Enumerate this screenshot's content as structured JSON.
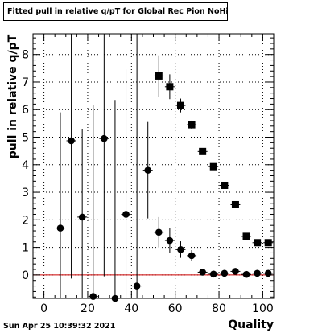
{
  "title": "Fitted pull in relative q/pT  for Global Rec Pion NoHits",
  "timestamp": "Sun Apr 25 10:39:32 2021",
  "chart_data": {
    "type": "scatter",
    "title": "Fitted pull in relative q/pT  for Global Rec Pion NoHits",
    "xlabel": "Quality",
    "ylabel": "pull in relative q/pT",
    "xlim": [
      -5,
      105
    ],
    "ylim": [
      -0.85,
      8.75
    ],
    "x_ticks": [
      0,
      20,
      40,
      60,
      80,
      100
    ],
    "y_ticks": [
      0,
      1,
      2,
      3,
      4,
      5,
      6,
      7,
      8
    ],
    "grid": true,
    "reference_line": {
      "y": 0,
      "color": "#cc0000"
    },
    "series": [
      {
        "marker": "circle",
        "color": "#000000",
        "points": [
          {
            "x": 7.5,
            "y": 1.7,
            "yerr": 4.2
          },
          {
            "x": 12.5,
            "y": 4.87,
            "yerr": 5.0
          },
          {
            "x": 17.5,
            "y": 2.1,
            "yerr": 3.2
          },
          {
            "x": 22.5,
            "y": -0.78,
            "yerr": 6.95
          },
          {
            "x": 27.5,
            "y": 4.95,
            "yerr": 5.0
          },
          {
            "x": 32.5,
            "y": -0.85,
            "yerr": 7.2
          },
          {
            "x": 37.5,
            "y": 2.2,
            "yerr": 5.25
          },
          {
            "x": 42.5,
            "y": -0.4,
            "yerr": 9.5
          },
          {
            "x": 47.5,
            "y": 3.8,
            "yerr": 1.75
          },
          {
            "x": 52.5,
            "y": 1.55,
            "yerr": 0.55
          },
          {
            "x": 57.5,
            "y": 1.25,
            "yerr": 0.45
          },
          {
            "x": 62.5,
            "y": 0.92,
            "yerr": 0.3
          },
          {
            "x": 67.5,
            "y": 0.7,
            "yerr": 0.2
          },
          {
            "x": 72.5,
            "y": 0.1,
            "yerr": 0.1
          },
          {
            "x": 77.5,
            "y": 0.03,
            "yerr": 0.07
          },
          {
            "x": 82.5,
            "y": 0.06,
            "yerr": 0.06
          },
          {
            "x": 87.5,
            "y": 0.13,
            "yerr": 0.06
          },
          {
            "x": 92.5,
            "y": 0.02,
            "yerr": 0.05
          },
          {
            "x": 97.5,
            "y": 0.06,
            "yerr": 0.05
          },
          {
            "x": 102.5,
            "y": 0.06,
            "yerr": 0.05
          }
        ]
      },
      {
        "marker": "square",
        "color": "#000000",
        "points": [
          {
            "x": 52.5,
            "y": 7.22,
            "yerr": 0.75
          },
          {
            "x": 57.5,
            "y": 6.83,
            "yerr": 0.45
          },
          {
            "x": 62.5,
            "y": 6.15,
            "yerr": 0.25
          },
          {
            "x": 67.5,
            "y": 5.45,
            "yerr": 0.15
          },
          {
            "x": 72.5,
            "y": 4.48,
            "yerr": 0.08
          },
          {
            "x": 77.5,
            "y": 3.93,
            "yerr": 0.06
          },
          {
            "x": 82.5,
            "y": 3.25,
            "yerr": 0.05
          },
          {
            "x": 87.5,
            "y": 2.55,
            "yerr": 0.04
          },
          {
            "x": 92.5,
            "y": 1.4,
            "yerr": 0.03
          },
          {
            "x": 97.5,
            "y": 1.17,
            "yerr": 0.03
          },
          {
            "x": 102.5,
            "y": 1.17,
            "yerr": 0.03
          }
        ]
      }
    ]
  }
}
